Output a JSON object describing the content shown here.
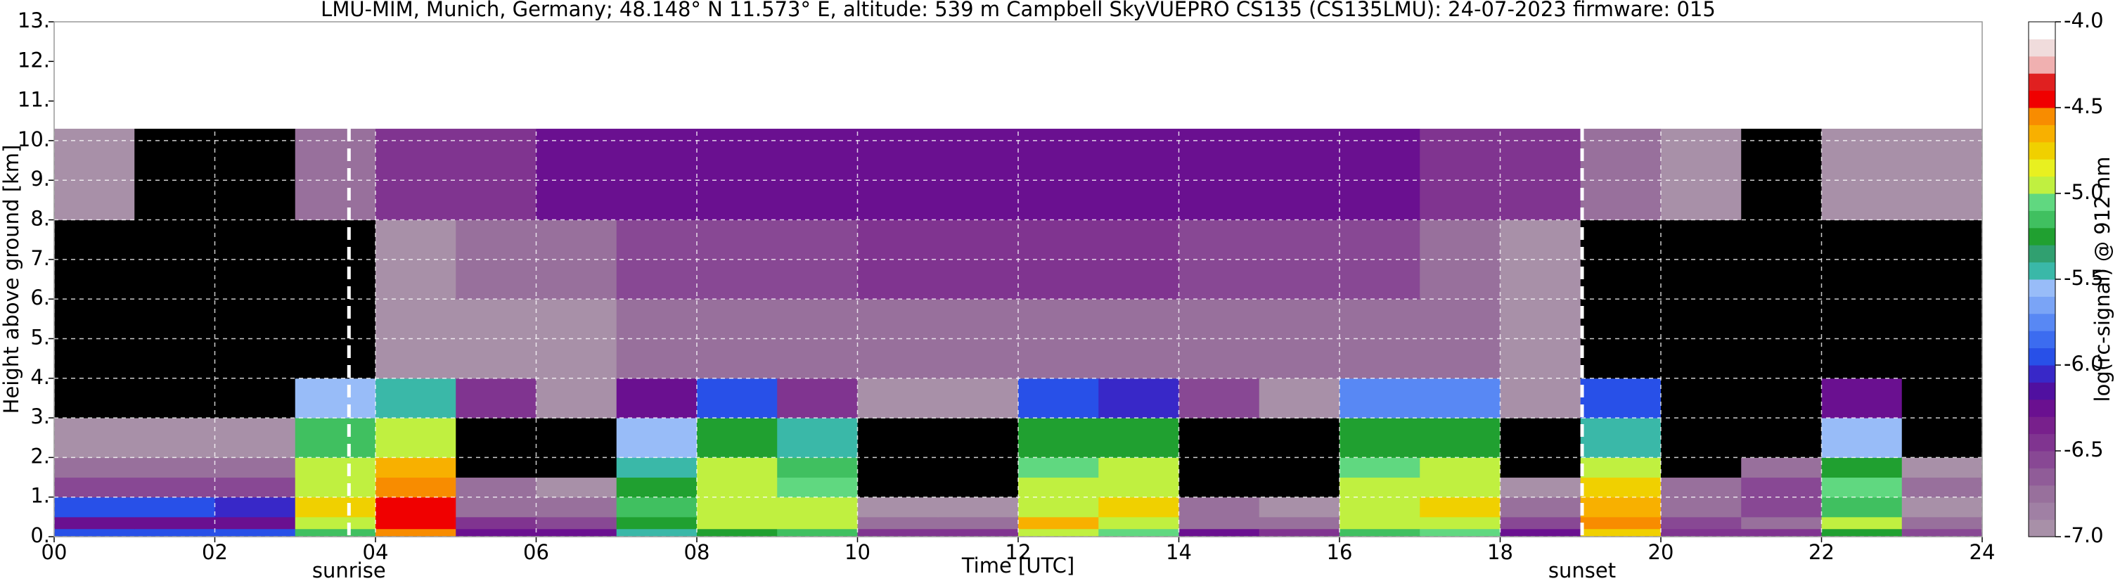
{
  "chart_data": {
    "type": "heatmap",
    "title": "LMU-MIM, Munich, Germany; 48.148° N 11.573° E, altitude: 539 m    Campbell SkyVUEPRO CS135 (CS135LMU): 24-07-2023    firmware: 015",
    "xlabel": "Time [UTC]",
    "ylabel": "Height above ground [km]",
    "colorbar_label": "log(rc-signal) @ 912 nm",
    "xlim": [
      0,
      24
    ],
    "ylim": [
      0,
      13
    ],
    "xticks": [
      {
        "value": 0,
        "label": "00"
      },
      {
        "value": 2,
        "label": "02"
      },
      {
        "value": 4,
        "label": "04"
      },
      {
        "value": 6,
        "label": "06"
      },
      {
        "value": 8,
        "label": "08"
      },
      {
        "value": 10,
        "label": "10"
      },
      {
        "value": 12,
        "label": "12"
      },
      {
        "value": 14,
        "label": "14"
      },
      {
        "value": 16,
        "label": "16"
      },
      {
        "value": 18,
        "label": "18"
      },
      {
        "value": 20,
        "label": "20"
      },
      {
        "value": 22,
        "label": "22"
      },
      {
        "value": 24,
        "label": "24"
      }
    ],
    "yticks": [
      {
        "value": 0,
        "label": "0."
      },
      {
        "value": 1,
        "label": "1."
      },
      {
        "value": 2,
        "label": "2."
      },
      {
        "value": 3,
        "label": "3."
      },
      {
        "value": 4,
        "label": "4."
      },
      {
        "value": 5,
        "label": "5."
      },
      {
        "value": 6,
        "label": "6."
      },
      {
        "value": 7,
        "label": "7."
      },
      {
        "value": 8,
        "label": "8."
      },
      {
        "value": 9,
        "label": "9."
      },
      {
        "value": 10,
        "label": "10."
      },
      {
        "value": 11,
        "label": "11."
      },
      {
        "value": 12,
        "label": "12."
      },
      {
        "value": 13,
        "label": "13."
      }
    ],
    "grid": true,
    "clim": [
      -7,
      -4
    ],
    "cticks": [
      {
        "value": -4,
        "label": "-4.0"
      },
      {
        "value": -4.5,
        "label": "-4.5"
      },
      {
        "value": -5,
        "label": "-5.0"
      },
      {
        "value": -5.5,
        "label": "-5.5"
      },
      {
        "value": -6,
        "label": "-6.0"
      },
      {
        "value": -6.5,
        "label": "-6.5"
      },
      {
        "value": -7,
        "label": "-7.0"
      }
    ],
    "colorscale": [
      "#a890a8",
      "#a080a4",
      "#98709c",
      "#905c98",
      "#884894",
      "#803490",
      "#78208c",
      "#6a1090",
      "#5010a0",
      "#3828c8",
      "#2850e8",
      "#3c6cf0",
      "#5888f4",
      "#7aa4f6",
      "#98bcf8",
      "#3ab8a8",
      "#30a070",
      "#20a030",
      "#40c060",
      "#60d880",
      "#c0f040",
      "#e8f020",
      "#f0d000",
      "#f8b000",
      "#f88c00",
      "#f00000",
      "#e02020",
      "#f0b0b0",
      "#f0dcdc",
      "#ffffff"
    ],
    "under_color": "#000000",
    "over_color": "#ffffff",
    "x_edges": [
      0,
      1,
      2,
      3,
      4,
      5,
      6,
      7,
      8,
      9,
      10,
      11,
      12,
      13,
      14,
      15,
      16,
      17,
      18,
      19,
      20,
      21,
      22,
      23,
      24
    ],
    "y_edges": [
      0,
      0.2,
      0.5,
      1,
      1.5,
      2,
      3,
      4,
      6,
      8,
      10.3
    ],
    "z": [
      [
        -6.0,
        -6.0,
        -6.0,
        -5.2,
        -4.6,
        -6.2,
        -6.3,
        -5.5,
        -5.3,
        -5.2,
        -6.4,
        -6.4,
        -5.0,
        -5.1,
        -6.3,
        -6.4,
        -5.2,
        -5.1,
        -6.3,
        -4.8,
        -6.4,
        -6.5,
        -5.3,
        -6.6
      ],
      [
        -6.2,
        -6.2,
        -6.2,
        -5.0,
        -4.4,
        -6.5,
        -6.6,
        -5.3,
        -4.9,
        -4.9,
        -6.7,
        -6.7,
        -4.7,
        -4.9,
        -6.7,
        -6.7,
        -5.0,
        -4.9,
        -6.6,
        -4.6,
        -6.6,
        -6.7,
        -5.0,
        -6.8
      ],
      [
        -6.0,
        -6.0,
        -6.1,
        -4.8,
        -4.5,
        -6.7,
        -6.8,
        -5.2,
        -5.0,
        -5.0,
        -6.9,
        -6.9,
        -4.9,
        -4.8,
        -6.8,
        -6.9,
        -4.9,
        -4.8,
        -6.8,
        -4.7,
        -6.8,
        -6.6,
        -5.2,
        -6.9
      ],
      [
        -6.6,
        -6.6,
        -6.6,
        -4.9,
        -4.6,
        -6.8,
        -6.9,
        -5.3,
        -4.9,
        -5.1,
        -7.1,
        -7.1,
        -5.0,
        -4.9,
        -7.1,
        -7.2,
        -5.0,
        -4.9,
        -7.0,
        -4.8,
        -6.8,
        -6.6,
        -5.1,
        -6.8
      ],
      [
        -6.7,
        -6.7,
        -6.8,
        -5.0,
        -4.7,
        -7.2,
        -7.2,
        -5.4,
        -5.0,
        -5.2,
        -7.3,
        -7.3,
        -5.1,
        -5.0,
        -7.3,
        -7.3,
        -5.1,
        -5.0,
        -7.2,
        -5.0,
        -7.2,
        -6.8,
        -5.3,
        -7.0
      ],
      [
        -6.9,
        -6.9,
        -6.9,
        -5.2,
        -5.0,
        -7.4,
        -7.4,
        -5.6,
        -5.3,
        -5.5,
        -7.4,
        -7.4,
        -5.3,
        -5.3,
        -7.4,
        -7.4,
        -5.3,
        -5.3,
        -7.4,
        -5.4,
        -7.5,
        -7.5,
        -5.6,
        -7.4
      ],
      [
        -7.4,
        -7.3,
        -7.3,
        -5.6,
        -5.5,
        -6.4,
        -7.0,
        -6.2,
        -6.0,
        -6.4,
        -7.0,
        -7.0,
        -6.0,
        -6.1,
        -6.6,
        -7.0,
        -5.8,
        -5.8,
        -7.0,
        -6.0,
        -7.5,
        -7.5,
        -6.2,
        -7.5
      ],
      [
        -7.6,
        -7.6,
        -7.6,
        -7.3,
        -7.0,
        -7.0,
        -6.9,
        -6.8,
        -6.8,
        -6.8,
        -6.8,
        -6.8,
        -6.8,
        -6.8,
        -6.8,
        -6.8,
        -6.7,
        -6.8,
        -7.0,
        -7.4,
        -7.6,
        -7.6,
        -7.5,
        -7.2
      ],
      [
        -7.6,
        -7.6,
        -7.6,
        -7.2,
        -6.9,
        -6.8,
        -6.7,
        -6.6,
        -6.6,
        -6.6,
        -6.5,
        -6.5,
        -6.5,
        -6.5,
        -6.6,
        -6.6,
        -6.6,
        -6.7,
        -6.9,
        -7.3,
        -7.5,
        -7.6,
        -7.5,
        -7.2
      ],
      [
        -7.0,
        -7.2,
        -7.2,
        -6.8,
        -6.5,
        -6.4,
        -6.3,
        -6.3,
        -6.2,
        -6.2,
        -6.2,
        -6.2,
        -6.2,
        -6.2,
        -6.2,
        -6.3,
        -6.3,
        -6.4,
        -6.5,
        -6.8,
        -7.0,
        -7.1,
        -7.0,
        -6.9
      ]
    ],
    "annotations": [
      {
        "x": 3.67,
        "label": "sunrise"
      },
      {
        "x": 19.02,
        "label": "sunset"
      }
    ]
  }
}
